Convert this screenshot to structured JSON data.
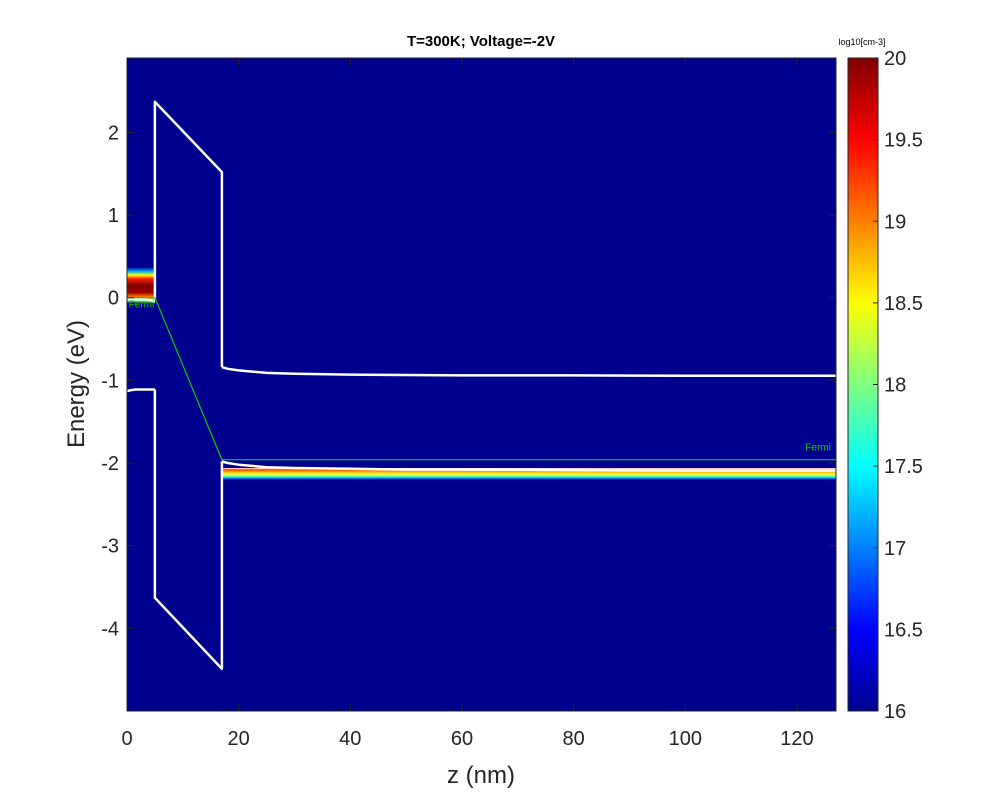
{
  "chart_data": {
    "type": "heatmap",
    "title": "T=300K; Voltage=-2V",
    "xlabel": "z (nm)",
    "ylabel": "Energy (eV)",
    "xlim": [
      0,
      127
    ],
    "ylim": [
      -5,
      2.9
    ],
    "xticks": [
      0,
      20,
      40,
      60,
      80,
      100,
      120
    ],
    "yticks": [
      -4,
      -3,
      -2,
      -1,
      0,
      1,
      2
    ],
    "background_color": "#00008f",
    "colorbar": {
      "label": "log10[cm-3]",
      "range": [
        16,
        20
      ],
      "ticks": [
        "16",
        "16.5",
        "17",
        "17.5",
        "18",
        "18.5",
        "19",
        "19.5",
        "20"
      ],
      "colormap": "jet"
    },
    "band_lines_color": "#ffffff",
    "fermi_color": "#00d000",
    "series": [
      {
        "name": "conduction band (left)",
        "x": [
          0,
          0.6,
          1.5,
          3,
          4.2,
          5
        ],
        "y": [
          -0.01,
          -0.02,
          -0.02,
          -0.02,
          -0.03,
          -0.05
        ]
      },
      {
        "name": "valence band (left)",
        "x": [
          0,
          0.6,
          1.5,
          3,
          4.2,
          5
        ],
        "y": [
          -1.13,
          -1.12,
          -1.11,
          -1.11,
          -1.11,
          -1.11
        ]
      },
      {
        "name": "barrier top",
        "x": [
          5,
          5,
          17,
          17
        ],
        "y": [
          -0.02,
          2.37,
          1.52,
          -0.84
        ]
      },
      {
        "name": "barrier bottom",
        "x": [
          5,
          5,
          17,
          17
        ],
        "y": [
          -1.11,
          -3.63,
          -4.49,
          -1.98
        ]
      },
      {
        "name": "conduction band (right)",
        "x": [
          17,
          18,
          20,
          25,
          30,
          40,
          50,
          60,
          80,
          100,
          127
        ],
        "y": [
          -0.84,
          -0.86,
          -0.88,
          -0.91,
          -0.92,
          -0.93,
          -0.935,
          -0.94,
          -0.94,
          -0.945,
          -0.945
        ]
      },
      {
        "name": "valence band (right)",
        "x": [
          17,
          18,
          20,
          25,
          30,
          40,
          50,
          60,
          80,
          100,
          127
        ],
        "y": [
          -1.98,
          -2.0,
          -2.02,
          -2.05,
          -2.06,
          -2.07,
          -2.08,
          -2.08,
          -2.085,
          -2.09,
          -2.09
        ]
      },
      {
        "name": "Fermi level",
        "x": [
          0,
          5,
          17,
          127
        ],
        "y": [
          0.0,
          0.0,
          -1.96,
          -1.96
        ]
      }
    ],
    "annotations": [
      {
        "text": "Fermi",
        "x": 0.3,
        "y": -0.12
      },
      {
        "text": "Fermi",
        "x": 121.5,
        "y": -1.85
      }
    ],
    "density_bands": [
      {
        "x_range": [
          0,
          5
        ],
        "y_center": 0.15,
        "y_half_width": 0.22,
        "peak": 20
      },
      {
        "x_range": [
          17,
          127
        ],
        "y_center": -2.13,
        "y_half_width": 0.07,
        "peak": 20
      }
    ]
  }
}
